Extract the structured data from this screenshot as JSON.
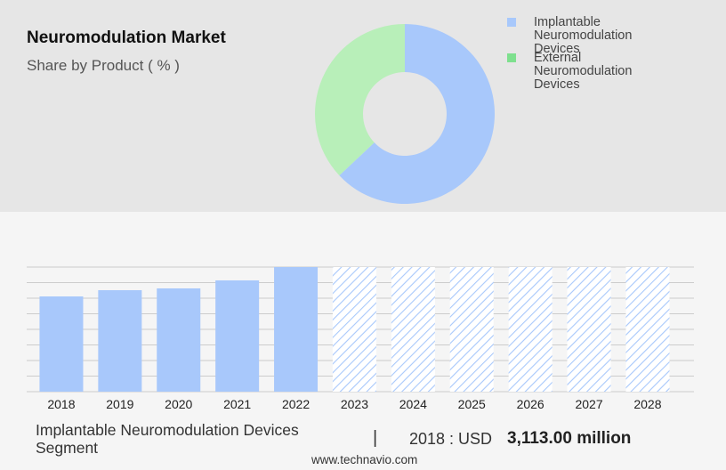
{
  "chart_data": [
    {
      "type": "pie",
      "title": "Neuromodulation Market",
      "subtitle": "Share by Product ( % )",
      "categories": [
        "Implantable Neuromodulation Devices",
        "External Neuromodulation Devices"
      ],
      "values": [
        63,
        37
      ],
      "colors": [
        "#a8c8fb",
        "#b8efb9"
      ],
      "legend_colors": [
        "#a8c8fb",
        "#7ee08e"
      ],
      "donut": true,
      "legend": "top-right"
    },
    {
      "type": "bar",
      "categories": [
        "2018",
        "2019",
        "2020",
        "2021",
        "2022",
        "2023",
        "2024",
        "2025",
        "2026",
        "2027",
        "2028"
      ],
      "values": [
        3113,
        3317,
        3375,
        3637,
        4073,
        null,
        null,
        null,
        null,
        null,
        null
      ],
      "color": "#a8c8fb",
      "ylim": [
        0,
        4073
      ],
      "grid": true
    }
  ],
  "footer": {
    "segment": "Implantable Neuromodulation Devices Segment",
    "separator": "|",
    "year_label": "2018 : USD",
    "amount": "3,113.00 million",
    "source": "www.technavio.com"
  }
}
